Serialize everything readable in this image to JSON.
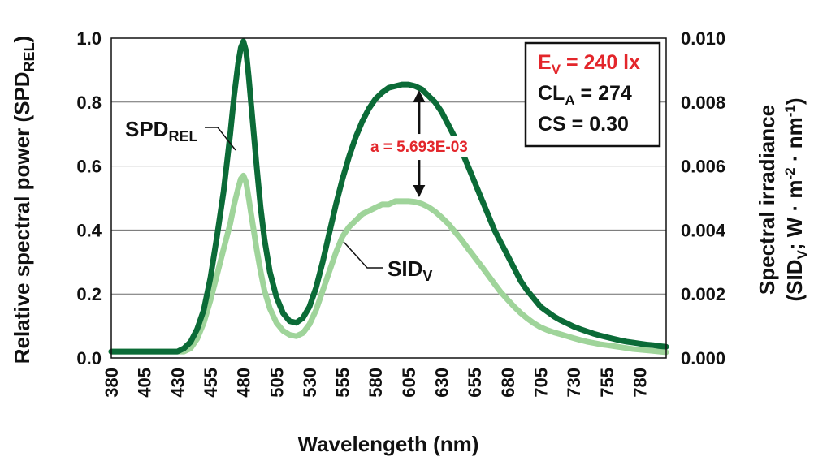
{
  "chart_data": {
    "type": "line",
    "xlabel": "Wavelengeth (nm)",
    "ylabel": {
      "main": "Relative spectral power (SPD",
      "sub": "REL",
      "close": ")"
    },
    "y2label": {
      "line1": "Spectral irradiance",
      "line2": {
        "pre": "(SID",
        "sub": "V",
        "mid": "; W · m",
        "sup1": "-2",
        "dot": " · nm",
        "sup2": "-1",
        "close": ")"
      }
    },
    "x_ticks": [
      "380",
      "405",
      "430",
      "455",
      "480",
      "505",
      "530",
      "555",
      "580",
      "605",
      "630",
      "655",
      "680",
      "705",
      "730",
      "755",
      "780"
    ],
    "xlim": [
      380,
      800
    ],
    "ylim": [
      0,
      1.0
    ],
    "y_ticks": [
      "0.0",
      "0.2",
      "0.4",
      "0.6",
      "0.8",
      "1.0"
    ],
    "y2lim": [
      0,
      0.01
    ],
    "y2_ticks": [
      "0.000",
      "0.002",
      "0.004",
      "0.006",
      "0.008",
      "0.010"
    ],
    "grid": "horizontal",
    "series": [
      {
        "name": "SPD",
        "name_sub": "REL",
        "axis": "left",
        "color": "#0b6b37",
        "x": [
          380,
          400,
          420,
          430,
          435,
          440,
          445,
          450,
          455,
          460,
          465,
          470,
          473,
          476,
          478,
          480,
          482,
          484,
          487,
          490,
          493,
          496,
          500,
          505,
          510,
          515,
          520,
          525,
          530,
          535,
          540,
          545,
          550,
          555,
          560,
          565,
          570,
          575,
          580,
          585,
          590,
          595,
          600,
          605,
          610,
          615,
          620,
          625,
          630,
          635,
          640,
          645,
          650,
          655,
          660,
          665,
          670,
          675,
          680,
          685,
          690,
          695,
          700,
          705,
          710,
          715,
          720,
          725,
          730,
          735,
          740,
          745,
          750,
          755,
          760,
          765,
          770,
          775,
          780,
          785,
          790,
          795,
          800
        ],
        "values": [
          0.02,
          0.02,
          0.02,
          0.02,
          0.03,
          0.05,
          0.09,
          0.15,
          0.25,
          0.38,
          0.52,
          0.7,
          0.82,
          0.92,
          0.97,
          0.99,
          0.96,
          0.88,
          0.74,
          0.6,
          0.47,
          0.37,
          0.27,
          0.19,
          0.14,
          0.115,
          0.11,
          0.125,
          0.16,
          0.22,
          0.3,
          0.39,
          0.48,
          0.56,
          0.63,
          0.69,
          0.74,
          0.78,
          0.81,
          0.83,
          0.845,
          0.85,
          0.855,
          0.855,
          0.85,
          0.84,
          0.82,
          0.8,
          0.77,
          0.73,
          0.69,
          0.65,
          0.6,
          0.55,
          0.5,
          0.45,
          0.4,
          0.36,
          0.32,
          0.28,
          0.24,
          0.21,
          0.185,
          0.16,
          0.145,
          0.13,
          0.118,
          0.108,
          0.098,
          0.09,
          0.083,
          0.076,
          0.07,
          0.065,
          0.06,
          0.055,
          0.051,
          0.048,
          0.045,
          0.042,
          0.04,
          0.037,
          0.035
        ]
      },
      {
        "name": "SID",
        "name_sub": "V",
        "axis": "right",
        "color": "#9fd49a",
        "x": [
          380,
          400,
          420,
          430,
          435,
          440,
          445,
          450,
          455,
          460,
          465,
          470,
          473,
          476,
          478,
          480,
          482,
          484,
          487,
          490,
          493,
          496,
          500,
          505,
          510,
          515,
          520,
          525,
          530,
          535,
          540,
          545,
          550,
          555,
          560,
          565,
          570,
          575,
          580,
          585,
          590,
          595,
          600,
          605,
          610,
          615,
          620,
          625,
          630,
          635,
          640,
          645,
          650,
          655,
          660,
          665,
          670,
          675,
          680,
          685,
          690,
          695,
          700,
          705,
          710,
          715,
          720,
          725,
          730,
          735,
          740,
          745,
          750,
          755,
          760,
          765,
          770,
          775,
          780,
          785,
          790,
          795,
          800
        ],
        "values": [
          0.0002,
          0.0002,
          0.0002,
          0.0002,
          0.0002,
          0.0003,
          0.0006,
          0.0011,
          0.0018,
          0.0026,
          0.0034,
          0.0042,
          0.0048,
          0.0053,
          0.0056,
          0.0057,
          0.0055,
          0.005,
          0.0042,
          0.0034,
          0.0027,
          0.0021,
          0.00155,
          0.0011,
          0.00085,
          0.00072,
          0.00068,
          0.00078,
          0.00105,
          0.0015,
          0.0021,
          0.0027,
          0.0033,
          0.0038,
          0.0041,
          0.0043,
          0.0045,
          0.0046,
          0.0047,
          0.0048,
          0.0048,
          0.0049,
          0.0049,
          0.0049,
          0.00488,
          0.00482,
          0.00472,
          0.00458,
          0.0044,
          0.0042,
          0.00395,
          0.0037,
          0.00342,
          0.00315,
          0.00288,
          0.0026,
          0.00232,
          0.00205,
          0.00182,
          0.0016,
          0.0014,
          0.00123,
          0.00108,
          0.00096,
          0.00087,
          0.0008,
          0.00074,
          0.00068,
          0.00062,
          0.00056,
          0.00051,
          0.00047,
          0.00043,
          0.0004,
          0.00037,
          0.00034,
          0.00031,
          0.00028,
          0.00026,
          0.00024,
          0.00022,
          0.0002,
          0.00018
        ]
      }
    ],
    "annotation": {
      "text": "a = 5.693E-03",
      "color": "#e3262b",
      "x": 613,
      "from_y": 0.855,
      "to_y": 0.49
    },
    "info_box": {
      "ev": {
        "pre": "E",
        "sub": "V",
        "post": " = 240 lx",
        "color": "#e3262b"
      },
      "cla": {
        "pre": "CL",
        "sub": "A",
        "post": " = 274"
      },
      "cs": {
        "text": "CS = 0.30"
      }
    }
  }
}
